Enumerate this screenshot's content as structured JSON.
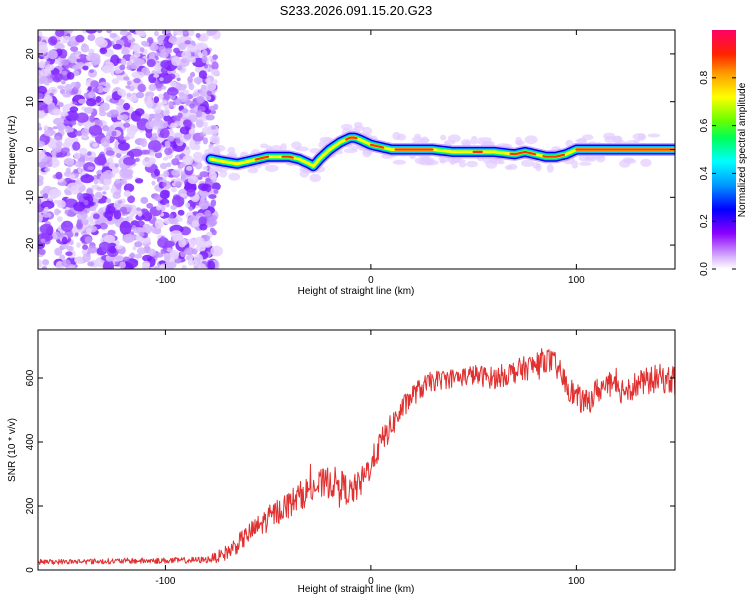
{
  "figure_title": "S233.2026.091.15.20.G23",
  "chart_data": [
    {
      "type": "heatmap",
      "name": "spectrogram",
      "xlabel": "Height of straight line (km)",
      "ylabel": "Frequency (Hz)",
      "xlim": [
        -162,
        148
      ],
      "ylim": [
        -25,
        25
      ],
      "xticks": [
        -100,
        0,
        100
      ],
      "xtick_labels": [
        "-100",
        "0",
        "100"
      ],
      "yticks": [
        -20,
        -10,
        0,
        10,
        20
      ],
      "ytick_labels": [
        "-20",
        "-10",
        "0",
        "10",
        "20"
      ],
      "noise_region": {
        "x_from": -162,
        "x_to": -78
      },
      "ridge": {
        "x": [
          -78,
          -72,
          -65,
          -60,
          -55,
          -50,
          -45,
          -40,
          -35,
          -30,
          -28,
          -25,
          -20,
          -15,
          -10,
          -8,
          -5,
          0,
          5,
          10,
          15,
          20,
          30,
          40,
          50,
          60,
          70,
          75,
          80,
          85,
          90,
          95,
          100,
          110,
          120,
          130,
          140,
          148
        ],
        "y": [
          -2,
          -2.5,
          -3,
          -2.5,
          -2,
          -1.5,
          -1.5,
          -1.5,
          -2,
          -3,
          -3.5,
          -2,
          0,
          1.5,
          2.5,
          2.5,
          2,
          1,
          0.5,
          0,
          0,
          0,
          0,
          -0.5,
          -0.5,
          -0.5,
          -1,
          -0.5,
          -1,
          -1.5,
          -1.5,
          -1,
          0,
          0,
          0,
          0,
          0,
          0
        ]
      },
      "colorbar": {
        "label": "Normalized spectral amplitude",
        "range": [
          0,
          1
        ],
        "ticks": [
          0.0,
          0.2,
          0.4,
          0.6,
          0.8
        ],
        "tick_labels": [
          "0.0",
          "0.2",
          "0.4",
          "0.6",
          "0.8"
        ]
      }
    },
    {
      "type": "line",
      "name": "snr",
      "xlabel": "Height of straight line (km)",
      "ylabel": "SNR (10 * v/v)",
      "xlim": [
        -162,
        148
      ],
      "ylim": [
        0,
        750
      ],
      "xticks": [
        -100,
        0,
        100
      ],
      "xtick_labels": [
        "-100",
        "0",
        "100"
      ],
      "yticks": [
        0,
        200,
        400,
        600
      ],
      "ytick_labels": [
        "0",
        "200",
        "400",
        "600"
      ],
      "color": "#e03030",
      "trend": {
        "x": [
          -162,
          -120,
          -90,
          -80,
          -75,
          -70,
          -65,
          -60,
          -55,
          -50,
          -45,
          -40,
          -35,
          -30,
          -25,
          -20,
          -15,
          -10,
          -5,
          0,
          5,
          10,
          15,
          20,
          25,
          30,
          40,
          50,
          60,
          70,
          80,
          85,
          90,
          95,
          100,
          105,
          110,
          115,
          120,
          130,
          140,
          148
        ],
        "y": [
          25,
          28,
          30,
          32,
          40,
          55,
          80,
          110,
          135,
          160,
          185,
          205,
          230,
          250,
          265,
          275,
          270,
          240,
          270,
          330,
          400,
          450,
          500,
          545,
          570,
          590,
          600,
          610,
          600,
          620,
          640,
          660,
          640,
          580,
          540,
          520,
          560,
          580,
          560,
          580,
          600,
          590
        ]
      },
      "noise_amplitude": {
        "x": [
          -162,
          -80,
          -70,
          -50,
          -20,
          0,
          20,
          40,
          80,
          148
        ],
        "y": [
          8,
          10,
          25,
          40,
          50,
          45,
          35,
          30,
          40,
          45
        ]
      }
    }
  ]
}
